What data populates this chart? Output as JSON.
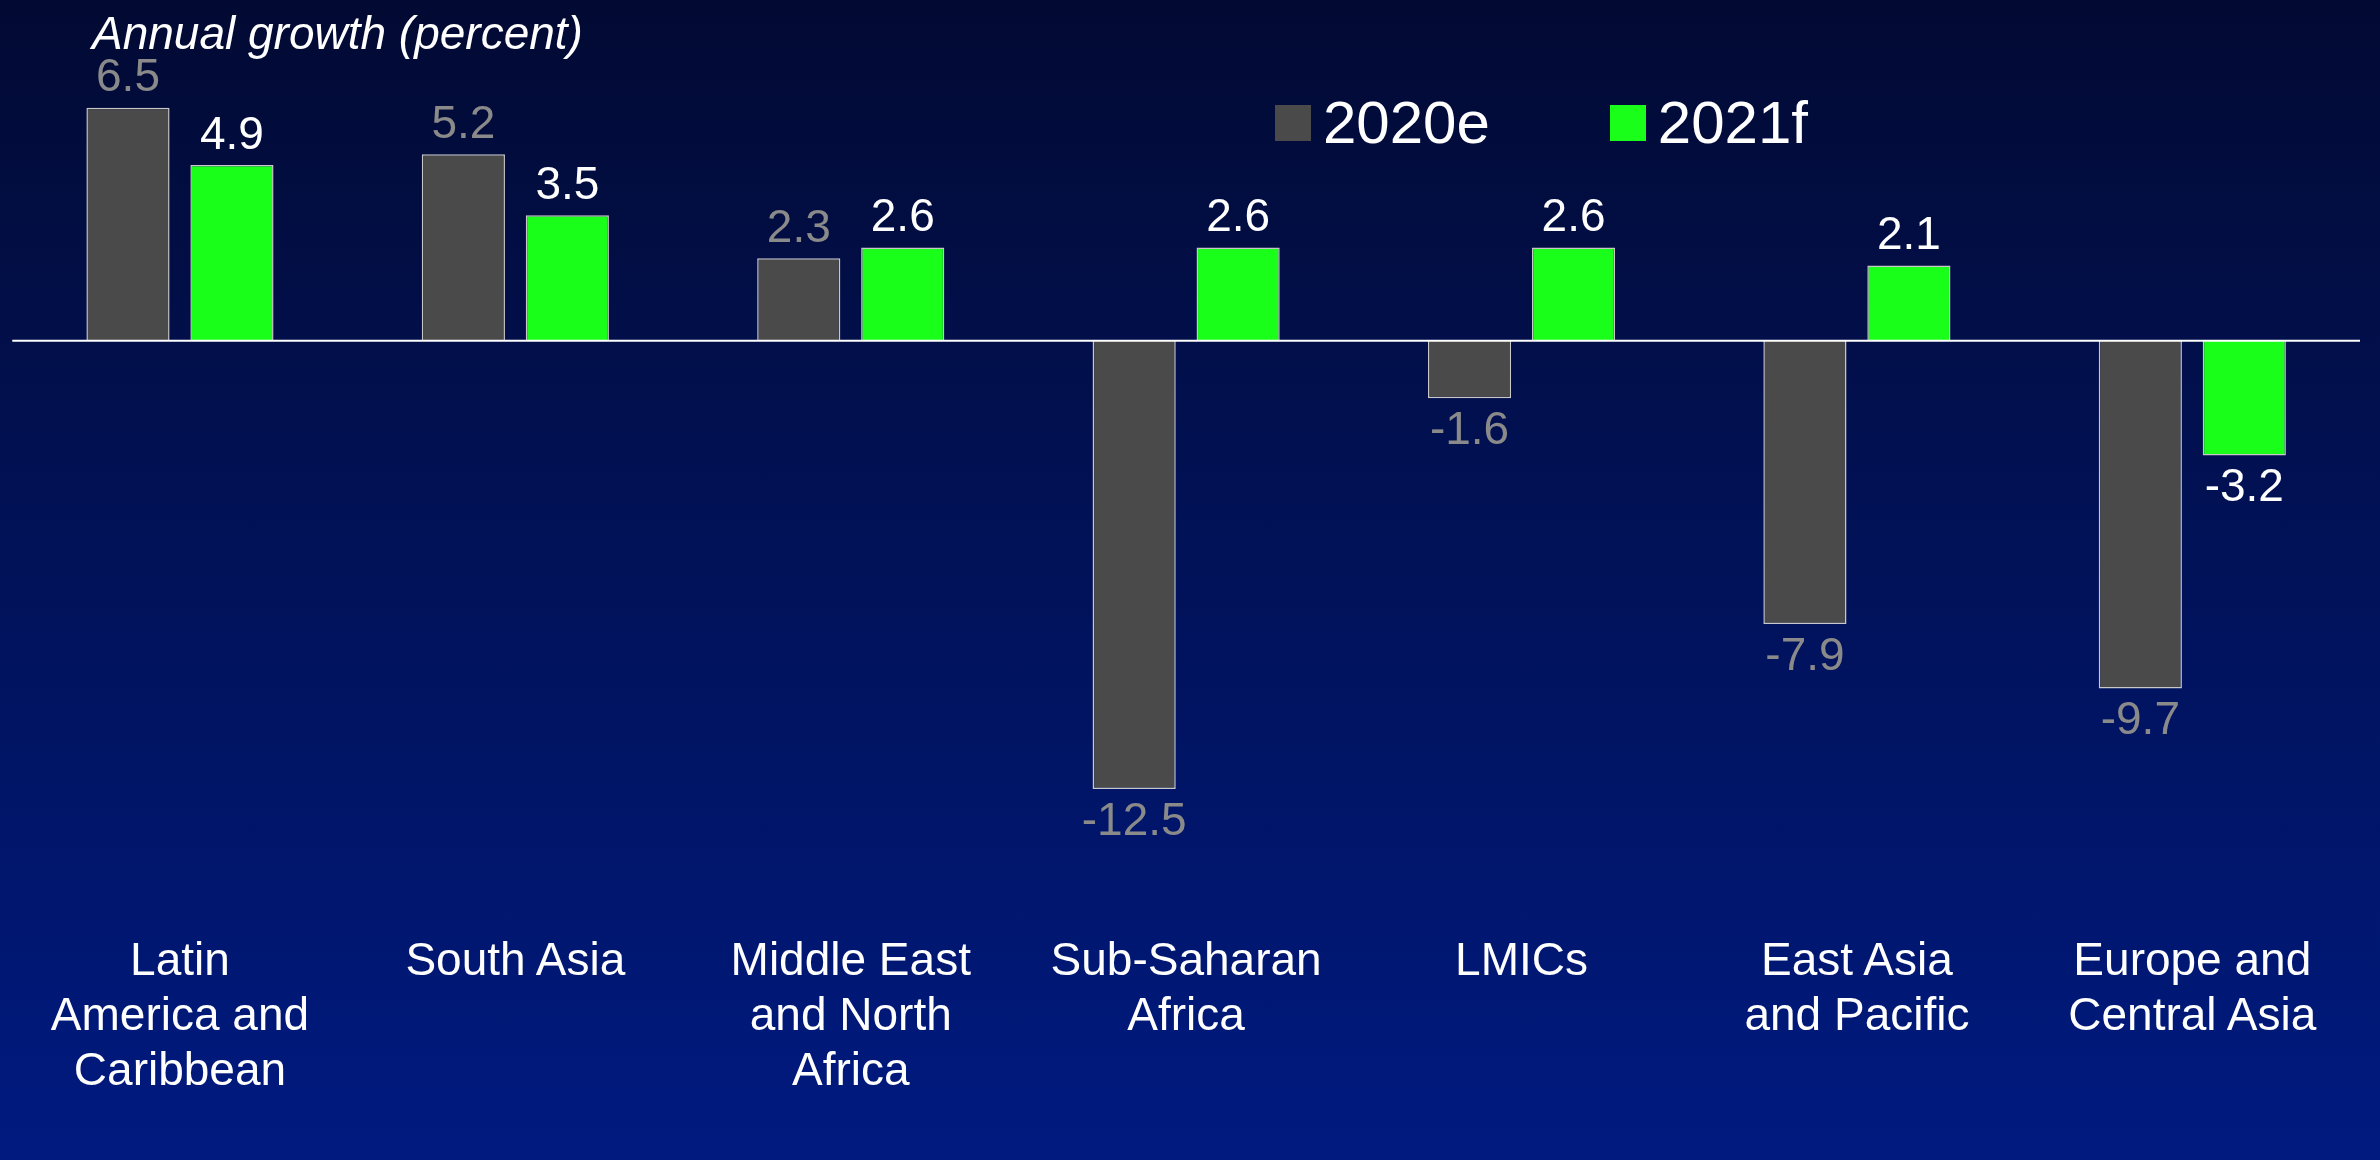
{
  "chart_data": {
    "type": "bar",
    "title": "Annual growth (percent)",
    "categories": [
      "Latin America and Caribbean",
      "South Asia",
      "Middle East and North Africa",
      "Sub-Saharan Africa",
      "LMICs",
      "East Asia and Pacific",
      "Europe and Central Asia"
    ],
    "series": [
      {
        "name": "2020e",
        "color": "#4a4a4a",
        "values": [
          6.5,
          5.2,
          2.3,
          -12.5,
          -1.6,
          -7.9,
          -9.7
        ]
      },
      {
        "name": "2021f",
        "color": "#1aff1a",
        "values": [
          4.9,
          3.5,
          2.6,
          2.6,
          2.6,
          2.1,
          -3.2
        ]
      }
    ],
    "data_labels": true,
    "legend": "top right",
    "grid": false
  }
}
